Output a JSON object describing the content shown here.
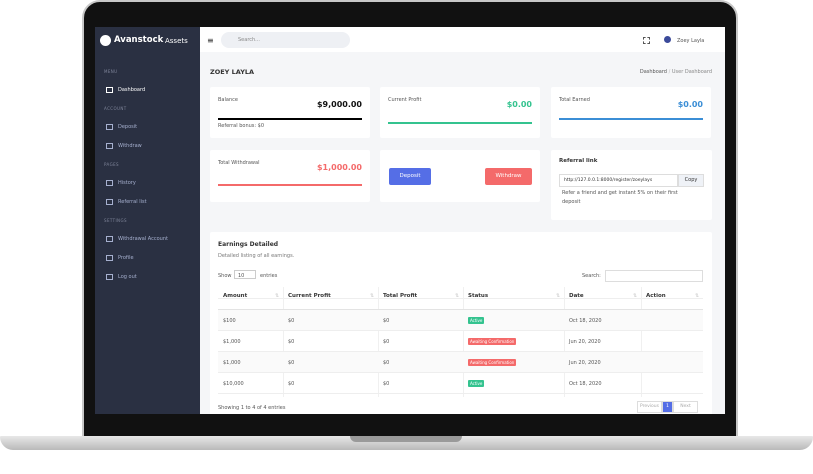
{
  "brand": {
    "name": "Avanstock",
    "suffix": "Assets"
  },
  "topbar": {
    "search_placeholder": "Search...",
    "user": "Zoey Layla"
  },
  "sidebar": {
    "sections": [
      {
        "title": "MENU",
        "items": [
          "Dashboard"
        ]
      },
      {
        "title": "ACCOUNT",
        "items": [
          "Deposit",
          "Withdraw"
        ]
      },
      {
        "title": "PAGES",
        "items": [
          "History",
          "Referral list"
        ]
      },
      {
        "title": "SETTINGS",
        "items": [
          "Withdrawal Account",
          "Profile",
          "Log out"
        ]
      }
    ]
  },
  "page": {
    "title": "ZOEY LAYLA",
    "breadcrumb": [
      "Dashboard",
      "User Dashboard"
    ]
  },
  "cards": {
    "balance": {
      "label": "Balance",
      "value": "$9,000.00",
      "note": "Referral bonus: $0",
      "color": "#000000"
    },
    "current_profit": {
      "label": "Current Profit",
      "value": "$0.00",
      "color": "#34c38f"
    },
    "total_earned": {
      "label": "Total Earned",
      "value": "$0.00",
      "color": "#3b8ed6"
    },
    "total_withdrawal": {
      "label": "Total Withdrawal",
      "value": "$1,000.00",
      "color": "#f46a6a"
    },
    "deposit_button": "Deposit",
    "withdraw_button": "Withdraw",
    "referral": {
      "title": "Referral link",
      "url": "http://127.0.0.1:8000/register/zoeylays",
      "copy": "Copy",
      "text": "Refer a friend and get instant 5% on their first deposit"
    }
  },
  "table": {
    "title": "Earnings Detailed",
    "subtitle": "Detailed listing of all earnings.",
    "show": "Show",
    "page_size": "10",
    "entries": "entries",
    "search": "Search:",
    "columns": [
      "Amount",
      "Current Profit",
      "Total Profit",
      "Status",
      "Date",
      "Action"
    ],
    "rows": [
      [
        "$100",
        "$0",
        "$0",
        {
          "label": "Active",
          "color": "#34c38f"
        },
        "Oct 18, 2020"
      ],
      [
        "$1,000",
        "$0",
        "$0",
        {
          "label": "Awaiting Confirmation",
          "color": "#f46a6a"
        },
        "Jun 20, 2020"
      ],
      [
        "$1,000",
        "$0",
        "$0",
        {
          "label": "Awaiting Confirmation",
          "color": "#f46a6a"
        },
        "Jun 20, 2020"
      ],
      [
        "$10,000",
        "$0",
        "$0",
        {
          "label": "Active",
          "color": "#34c38f"
        },
        "Oct 18, 2020"
      ]
    ],
    "info": "Showing 1 to 4 of 4 entries",
    "pagination": [
      "Previous",
      "1",
      "Next"
    ]
  }
}
